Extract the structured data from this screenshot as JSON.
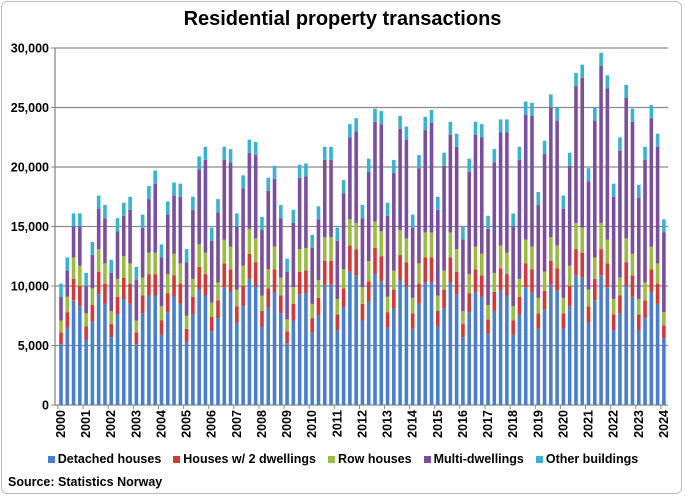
{
  "chart_data": {
    "type": "bar",
    "stacked": true,
    "title": "Residential property transactions",
    "source": "Source: Statistics Norway",
    "ylim": [
      0,
      30000
    ],
    "y_ticks": [
      "0",
      "5,000",
      "10,000",
      "15,000",
      "20,000",
      "25,000",
      "30,000"
    ],
    "y_tick_values": [
      0,
      5000,
      10000,
      15000,
      20000,
      25000,
      30000
    ],
    "x_ticks": [
      "2000",
      "2001",
      "2002",
      "2003",
      "2004",
      "2005",
      "2006",
      "2007",
      "2008",
      "2009",
      "2010",
      "2011",
      "2012",
      "2013",
      "2014",
      "2015",
      "2016",
      "2017",
      "2018",
      "2019",
      "2020",
      "2021",
      "2022",
      "2023",
      "2024"
    ],
    "grid": "horizontal",
    "legend_position": "bottom",
    "series": [
      {
        "name": "Detached houses",
        "color": "#4a7fcb",
        "values": [
          5100,
          6500,
          8800,
          8300,
          5500,
          7000,
          9300,
          8500,
          5700,
          7600,
          8900,
          8500,
          5100,
          7700,
          9200,
          9200,
          5900,
          7800,
          9100,
          8500,
          5300,
          7600,
          9700,
          9200,
          6200,
          7300,
          9900,
          9500,
          6900,
          8300,
          10600,
          10000,
          6600,
          8200,
          9500,
          7700,
          5200,
          7100,
          9300,
          9400,
          6100,
          7500,
          10100,
          10100,
          6300,
          8200,
          11200,
          10900,
          7100,
          8700,
          11000,
          10400,
          6500,
          8100,
          10500,
          10000,
          6400,
          8500,
          10300,
          10300,
          6600,
          8100,
          10300,
          9300,
          5700,
          7800,
          9500,
          9100,
          6000,
          7900,
          9600,
          9200,
          5900,
          7600,
          9900,
          9500,
          6400,
          8000,
          10100,
          9600,
          6400,
          8300,
          10900,
          10700,
          6900,
          8800,
          10900,
          9900,
          6300,
          7700,
          10000,
          9100,
          6300,
          7300,
          9500,
          8500,
          5600
        ]
      },
      {
        "name": "Houses w/ 2 dwellings",
        "color": "#d03a3a",
        "values": [
          1000,
          1300,
          1800,
          1700,
          1100,
          1400,
          1900,
          1700,
          1100,
          1500,
          1800,
          1700,
          1000,
          1500,
          1800,
          1800,
          1200,
          1600,
          1800,
          1700,
          1100,
          1500,
          1900,
          1800,
          1200,
          1500,
          2000,
          1900,
          1400,
          1700,
          2100,
          2000,
          1300,
          1600,
          1900,
          1500,
          1000,
          1400,
          1900,
          1900,
          1200,
          1500,
          2000,
          2000,
          1300,
          1600,
          2200,
          2200,
          1400,
          1700,
          2200,
          2100,
          1300,
          1600,
          2100,
          2000,
          1300,
          1700,
          2100,
          2100,
          1300,
          1600,
          2100,
          1900,
          1100,
          1600,
          1900,
          1800,
          1200,
          1600,
          1900,
          1800,
          1200,
          1500,
          2000,
          1900,
          1300,
          1600,
          2000,
          1900,
          1300,
          1700,
          2200,
          2100,
          1400,
          1800,
          2200,
          2000,
          1300,
          1500,
          2000,
          1800,
          1300,
          1500,
          1900,
          1700,
          1100
        ]
      },
      {
        "name": "Row houses",
        "color": "#9bbb45",
        "values": [
          1000,
          1300,
          1800,
          1700,
          1100,
          1400,
          1900,
          1700,
          1100,
          1500,
          1800,
          1700,
          1000,
          1500,
          1800,
          1800,
          1200,
          1600,
          1800,
          1700,
          1100,
          1500,
          1900,
          1800,
          1200,
          1500,
          2000,
          1900,
          1400,
          1700,
          2100,
          2000,
          1300,
          1600,
          1900,
          1500,
          1000,
          1400,
          1900,
          1900,
          1200,
          1500,
          2000,
          2000,
          1300,
          1600,
          2200,
          2200,
          1400,
          1700,
          2200,
          2100,
          1300,
          1600,
          2100,
          2000,
          1300,
          1700,
          2100,
          2100,
          1300,
          1600,
          2100,
          1900,
          1100,
          1600,
          1900,
          1800,
          1200,
          1600,
          1900,
          1800,
          1200,
          1500,
          2000,
          1900,
          1300,
          1600,
          2000,
          1900,
          1300,
          1700,
          2200,
          2100,
          1400,
          1800,
          2200,
          2000,
          1300,
          1500,
          2000,
          1800,
          1300,
          1500,
          1900,
          1700,
          1100
        ]
      },
      {
        "name": "Multi-dwellings",
        "color": "#7b4f9e",
        "values": [
          2000,
          2200,
          2600,
          3300,
          2300,
          2800,
          3400,
          3800,
          3200,
          4000,
          3400,
          4500,
          3400,
          4200,
          4500,
          5800,
          4100,
          5000,
          4900,
          5600,
          4500,
          5800,
          6300,
          7800,
          5200,
          5900,
          6700,
          7100,
          5300,
          6500,
          6400,
          7000,
          5500,
          6600,
          5700,
          5000,
          4000,
          5400,
          6000,
          6000,
          4700,
          5100,
          6500,
          6500,
          4900,
          6400,
          6900,
          7700,
          5800,
          7500,
          8400,
          9000,
          6800,
          8200,
          8500,
          8300,
          5900,
          8000,
          8600,
          9200,
          7200,
          8800,
          8200,
          8600,
          6000,
          8600,
          9400,
          9800,
          6400,
          9300,
          9500,
          10100,
          6700,
          10000,
          10500,
          11000,
          7800,
          9900,
          10900,
          10500,
          7500,
          8400,
          11500,
          12600,
          9100,
          11500,
          13200,
          12700,
          8600,
          10700,
          11800,
          11100,
          8500,
          10300,
          10800,
          9800,
          6700
        ]
      },
      {
        "name": "Other buildings",
        "color": "#3ab2d0",
        "values": [
          1100,
          1100,
          1100,
          1100,
          1100,
          1100,
          1100,
          1100,
          1100,
          1100,
          1100,
          1100,
          1100,
          1100,
          1100,
          1100,
          1100,
          1100,
          1100,
          1100,
          1100,
          1100,
          1100,
          1100,
          1100,
          1100,
          1100,
          1100,
          1100,
          1100,
          1100,
          1100,
          1100,
          1100,
          1100,
          1100,
          1100,
          1100,
          1100,
          1100,
          1100,
          1100,
          1100,
          1100,
          1100,
          1100,
          1100,
          1100,
          1100,
          1100,
          1100,
          1100,
          1100,
          1100,
          1100,
          1100,
          1100,
          1100,
          1100,
          1100,
          1100,
          1100,
          1100,
          1100,
          1100,
          1100,
          1100,
          1100,
          1100,
          1100,
          1100,
          1100,
          1100,
          1100,
          1100,
          1100,
          1100,
          1100,
          1100,
          1100,
          1100,
          1100,
          1100,
          1100,
          1100,
          1100,
          1100,
          1100,
          1100,
          1100,
          1100,
          1100,
          1100,
          1100,
          1100,
          1100,
          1100
        ]
      }
    ]
  }
}
